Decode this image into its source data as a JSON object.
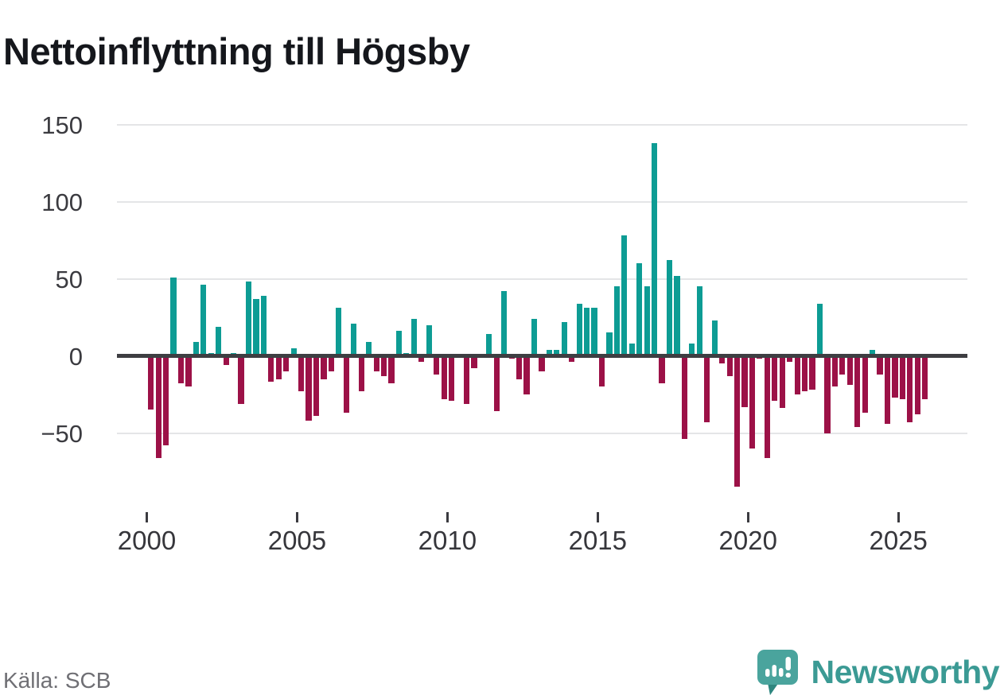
{
  "title": "Nettoinflyttning till Högsby",
  "source": "Källa: SCB",
  "brand": {
    "name": "Newsworthy"
  },
  "y_axis": {
    "tick_labels": [
      "150",
      "100",
      "50",
      "0",
      "−50"
    ],
    "tick_values": [
      150,
      100,
      50,
      0,
      -50
    ]
  },
  "x_axis": {
    "tick_labels": [
      "2000",
      "2005",
      "2010",
      "2015",
      "2020",
      "2025"
    ],
    "tick_years": [
      2000,
      2005,
      2010,
      2015,
      2020,
      2025
    ]
  },
  "colors": {
    "positive_bar": "#0d9c94",
    "negative_bar": "#9c1147",
    "zero_line": "#3e3e42",
    "gridline": "#e4e5e7",
    "title_text": "#15171c",
    "axis_text": "#3b3b40",
    "source_text": "#6f6f74",
    "brand_teal": "#3b9a94"
  },
  "chart_data": {
    "type": "bar",
    "title": "Nettoinflyttning till Högsby",
    "frequency": "quarterly",
    "start": "2000Q1",
    "end": "2025Q4",
    "ylim": [
      -90,
      155
    ],
    "grid": "horizontal",
    "legend": "none",
    "positive_color": "#0d9c94",
    "negative_color": "#9c1147",
    "years": [
      {
        "year": 2000,
        "values": [
          -35,
          -66,
          -58,
          51
        ]
      },
      {
        "year": 2001,
        "values": [
          -18,
          -20,
          9,
          46
        ]
      },
      {
        "year": 2002,
        "values": [
          2,
          19,
          -6,
          2
        ]
      },
      {
        "year": 2003,
        "values": [
          -31,
          48,
          37,
          39
        ]
      },
      {
        "year": 2004,
        "values": [
          -17,
          -15,
          -10,
          5
        ]
      },
      {
        "year": 2005,
        "values": [
          -23,
          -42,
          -39,
          -15
        ]
      },
      {
        "year": 2006,
        "values": [
          -10,
          31,
          -37,
          21
        ]
      },
      {
        "year": 2007,
        "values": [
          -23,
          9,
          -10,
          -13
        ]
      },
      {
        "year": 2008,
        "values": [
          -18,
          16,
          2,
          24
        ]
      },
      {
        "year": 2009,
        "values": [
          -4,
          20,
          -12,
          -28
        ]
      },
      {
        "year": 2010,
        "values": [
          -29,
          0,
          -31,
          -8
        ]
      },
      {
        "year": 2011,
        "values": [
          0,
          14,
          -36,
          42
        ]
      },
      {
        "year": 2012,
        "values": [
          -2,
          -15,
          -25,
          24
        ]
      },
      {
        "year": 2013,
        "values": [
          -10,
          4,
          4,
          22
        ]
      },
      {
        "year": 2014,
        "values": [
          -4,
          34,
          31,
          31
        ]
      },
      {
        "year": 2015,
        "values": [
          -20,
          15,
          45,
          78
        ]
      },
      {
        "year": 2016,
        "values": [
          8,
          60,
          45,
          138
        ]
      },
      {
        "year": 2017,
        "values": [
          -18,
          62,
          52,
          -54
        ]
      },
      {
        "year": 2018,
        "values": [
          8,
          45,
          -43,
          23
        ]
      },
      {
        "year": 2019,
        "values": [
          -5,
          -13,
          -85,
          -33
        ]
      },
      {
        "year": 2020,
        "values": [
          -60,
          -2,
          -66,
          -29
        ]
      },
      {
        "year": 2021,
        "values": [
          -34,
          -4,
          -25,
          -23
        ]
      },
      {
        "year": 2022,
        "values": [
          -22,
          34,
          -50,
          -20
        ]
      },
      {
        "year": 2023,
        "values": [
          -12,
          -19,
          -46,
          -37
        ]
      },
      {
        "year": 2024,
        "values": [
          4,
          -12,
          -44,
          -27
        ]
      },
      {
        "year": 2025,
        "values": [
          -28,
          -43,
          -38,
          -28
        ]
      }
    ]
  }
}
